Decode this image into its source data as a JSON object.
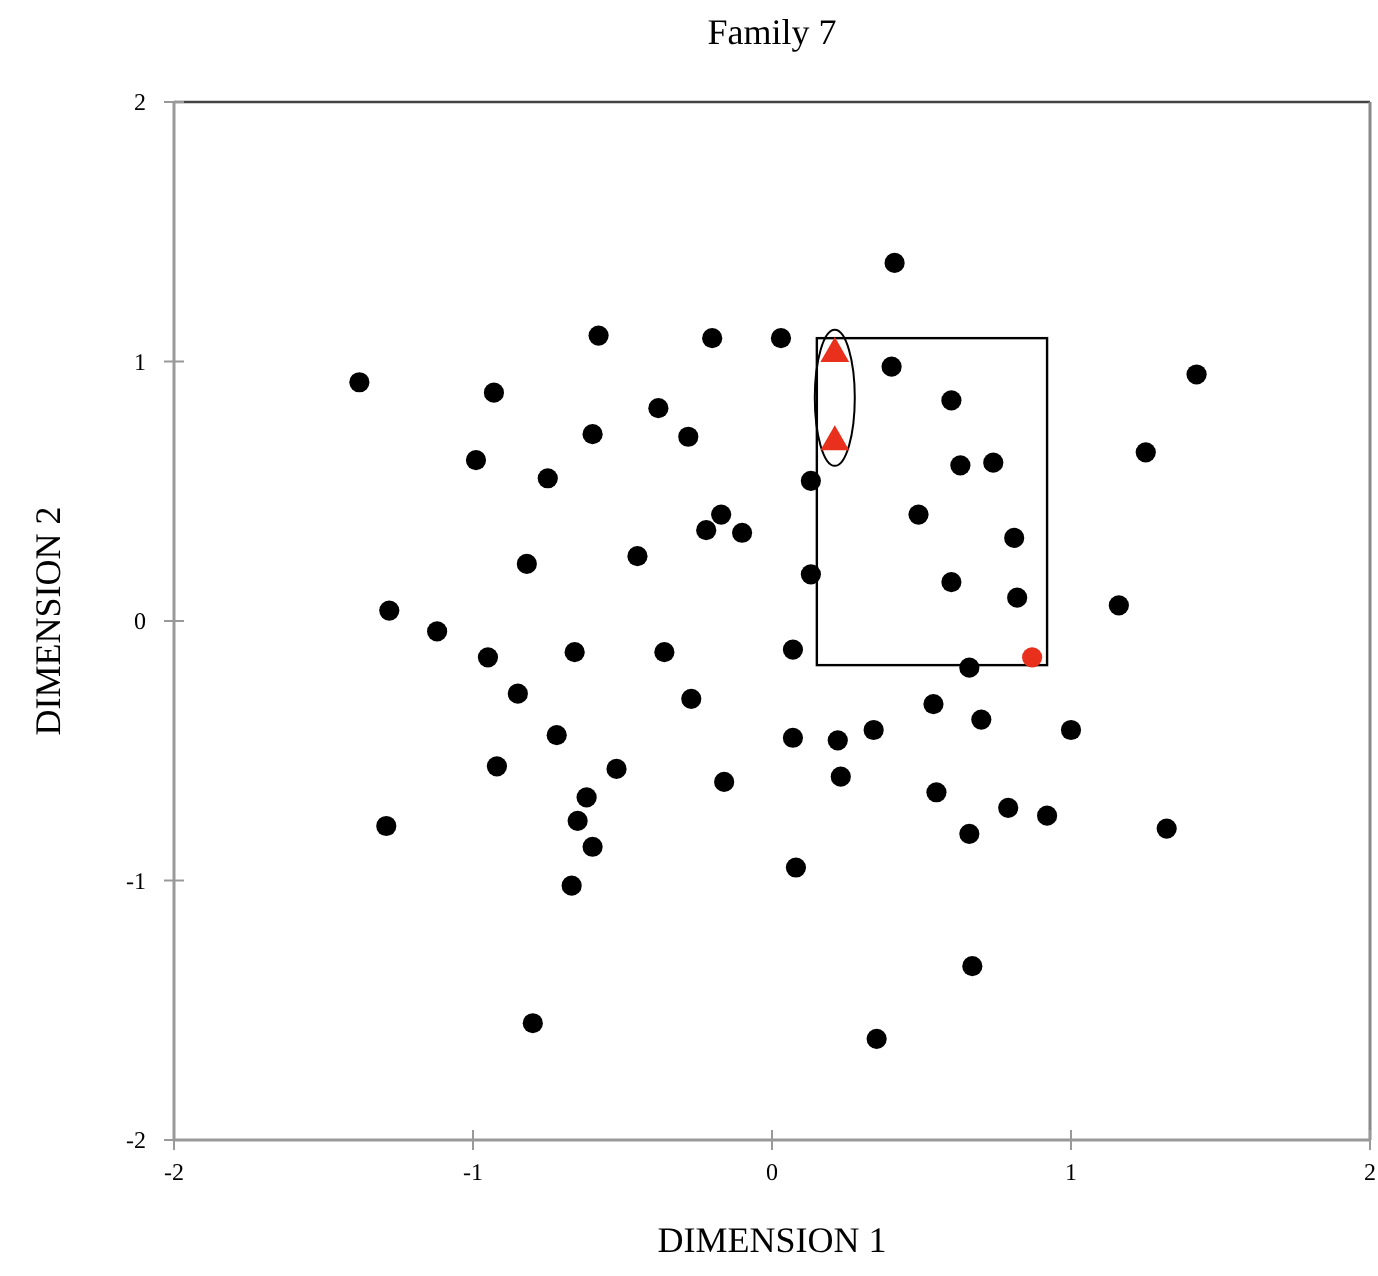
{
  "chart_data": {
    "type": "scatter",
    "title": "Family 7",
    "xlabel": "DIMENSION 1",
    "ylabel": "DIMENSION 2",
    "xlim": [
      -2,
      2
    ],
    "ylim": [
      -2,
      2
    ],
    "xticks": [
      -2,
      -1,
      0,
      1,
      2
    ],
    "yticks": [
      -2,
      -1,
      0,
      1,
      2
    ],
    "grid": false,
    "series": [
      {
        "color": "#000000",
        "marker": "circle",
        "x": [
          -1.38,
          -0.93,
          -0.58,
          -0.2,
          0.03,
          0.41,
          0.4,
          0.6,
          1.42,
          1.25,
          0.13,
          0.63,
          0.74,
          0.49,
          0.81,
          0.13,
          0.6,
          0.82,
          1.16,
          -0.38,
          -0.6,
          -0.28,
          -0.99,
          -0.75,
          -0.17,
          -0.22,
          -0.1,
          -0.82,
          -0.45,
          -1.28,
          -1.12,
          -0.95,
          -0.66,
          -0.36,
          -0.85,
          -0.27,
          -0.72,
          -0.92,
          -0.52,
          -0.16,
          -0.62,
          -0.65,
          -0.6,
          -1.29,
          -0.67,
          -0.8,
          0.07,
          0.66,
          0.54,
          0.7,
          0.07,
          0.22,
          0.34,
          1.0,
          0.23,
          0.55,
          0.79,
          0.92,
          0.66,
          1.32,
          0.08,
          0.67,
          0.35
        ],
        "values": [
          0.92,
          0.88,
          1.1,
          1.09,
          1.09,
          1.38,
          0.98,
          0.85,
          0.95,
          0.65,
          0.54,
          0.6,
          0.61,
          0.41,
          0.32,
          0.18,
          0.15,
          0.09,
          0.06,
          0.82,
          0.72,
          0.71,
          0.62,
          0.55,
          0.41,
          0.35,
          0.34,
          0.22,
          0.25,
          0.04,
          -0.04,
          -0.14,
          -0.12,
          -0.12,
          -0.28,
          -0.3,
          -0.44,
          -0.56,
          -0.57,
          -0.62,
          -0.68,
          -0.77,
          -0.87,
          -0.79,
          -1.02,
          -1.55,
          -0.11,
          -0.18,
          -0.32,
          -0.38,
          -0.45,
          -0.46,
          -0.42,
          -0.42,
          -0.6,
          -0.66,
          -0.72,
          -0.75,
          -0.82,
          -0.8,
          -0.95,
          -1.33,
          -1.61
        ]
      },
      {
        "color": "#e8301c",
        "marker": "triangle",
        "x": [
          0.21,
          0.21
        ],
        "values": [
          1.03,
          0.69
        ]
      },
      {
        "color": "#e8301c",
        "marker": "circle",
        "x": [
          0.87
        ],
        "values": [
          -0.14
        ]
      }
    ]
  }
}
